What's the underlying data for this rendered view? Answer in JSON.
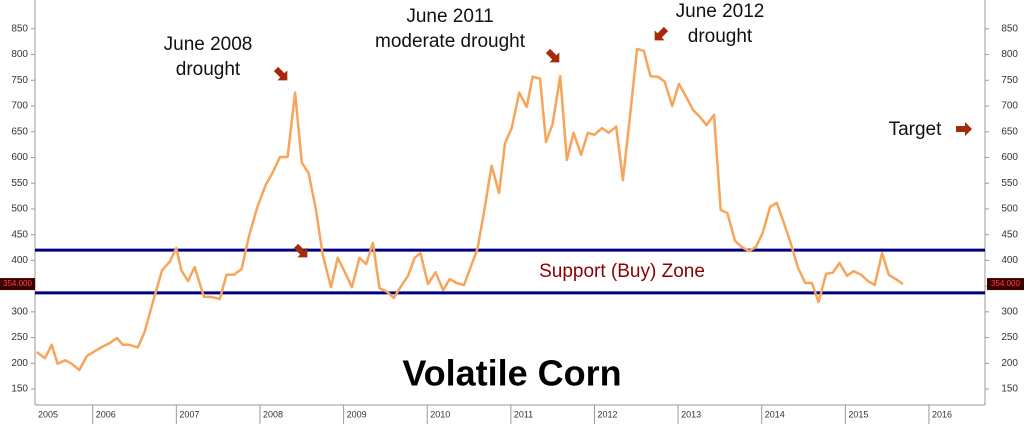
{
  "chart_data": {
    "type": "line",
    "title": "Volatile Corn",
    "zone_label": "Support (Buy) Zone",
    "last_value_label": "354.000",
    "annotations": [
      {
        "lines": [
          "June 2008",
          "drought"
        ]
      },
      {
        "lines": [
          "June 2011",
          "moderate drought"
        ]
      },
      {
        "lines": [
          "June 2012",
          "drought"
        ]
      },
      {
        "lines": [
          "Target"
        ]
      }
    ],
    "support_lines": [
      420,
      337
    ],
    "support_color": "#00007f",
    "xlim": [
      2005.31,
      2016.67
    ],
    "xticks": [
      2005,
      2006,
      2007,
      2008,
      2009,
      2010,
      2011,
      2012,
      2013,
      2014,
      2015,
      2016
    ],
    "ylim": [
      119,
      906
    ],
    "yticks": [
      150,
      200,
      250,
      300,
      350,
      400,
      450,
      500,
      550,
      600,
      650,
      700,
      750,
      800,
      850
    ],
    "series": [
      {
        "color": "#f7a55a",
        "x": [
          2005.33,
          2005.43,
          2005.51,
          2005.58,
          2005.67,
          2005.75,
          2005.84,
          2005.93,
          2006.01,
          2006.1,
          2006.2,
          2006.29,
          2006.36,
          2006.44,
          2006.54,
          2006.62,
          2006.72,
          2006.83,
          2006.92,
          2007.0,
          2007.06,
          2007.14,
          2007.22,
          2007.33,
          2007.42,
          2007.52,
          2007.6,
          2007.69,
          2007.78,
          2007.87,
          2007.97,
          2008.07,
          2008.15,
          2008.24,
          2008.33,
          2008.42,
          2008.5,
          2008.58,
          2008.67,
          2008.75,
          2008.85,
          2008.93,
          2009.01,
          2009.1,
          2009.19,
          2009.27,
          2009.35,
          2009.43,
          2009.52,
          2009.6,
          2009.68,
          2009.77,
          2009.85,
          2009.92,
          2010.01,
          2010.1,
          2010.19,
          2010.27,
          2010.35,
          2010.44,
          2010.52,
          2010.6,
          2010.69,
          2010.77,
          2010.86,
          2010.93,
          2011.01,
          2011.1,
          2011.19,
          2011.26,
          2011.35,
          2011.42,
          2011.5,
          2011.59,
          2011.67,
          2011.75,
          2011.84,
          2011.92,
          2012.0,
          2012.09,
          2012.17,
          2012.26,
          2012.34,
          2012.42,
          2012.51,
          2012.59,
          2012.67,
          2012.76,
          2012.84,
          2012.93,
          2013.01,
          2013.09,
          2013.18,
          2013.26,
          2013.34,
          2013.43,
          2013.51,
          2013.59,
          2013.68,
          2013.76,
          2013.85,
          2013.93,
          2014.01,
          2014.1,
          2014.18,
          2014.26,
          2014.35,
          2014.43,
          2014.52,
          2014.6,
          2014.68,
          2014.77,
          2014.85,
          2014.93,
          2015.02,
          2015.1,
          2015.19,
          2015.27,
          2015.35,
          2015.44,
          2015.52,
          2015.6,
          2015.69
        ],
        "values": [
          222,
          210,
          236,
          199,
          206,
          199,
          187,
          214,
          222,
          231,
          239,
          249,
          236,
          236,
          231,
          261,
          319,
          381,
          397,
          424,
          381,
          360,
          387,
          329,
          329,
          325,
          372,
          372,
          383,
          448,
          504,
          547,
          570,
          601,
          601,
          726,
          590,
          570,
          498,
          411,
          348,
          405,
          379,
          348,
          405,
          393,
          434,
          346,
          339,
          327,
          348,
          370,
          405,
          414,
          354,
          377,
          342,
          364,
          356,
          352,
          387,
          422,
          504,
          584,
          531,
          628,
          657,
          726,
          698,
          757,
          753,
          630,
          665,
          758,
          595,
          648,
          605,
          648,
          644,
          657,
          648,
          660,
          556,
          673,
          811,
          807,
          758,
          757,
          747,
          700,
          743,
          720,
          692,
          679,
          663,
          683,
          498,
          492,
          438,
          426,
          418,
          426,
          453,
          504,
          512,
          475,
          432,
          387,
          356,
          356,
          319,
          374,
          376,
          395,
          370,
          379,
          372,
          360,
          352,
          414,
          372,
          364,
          354
        ]
      }
    ]
  }
}
